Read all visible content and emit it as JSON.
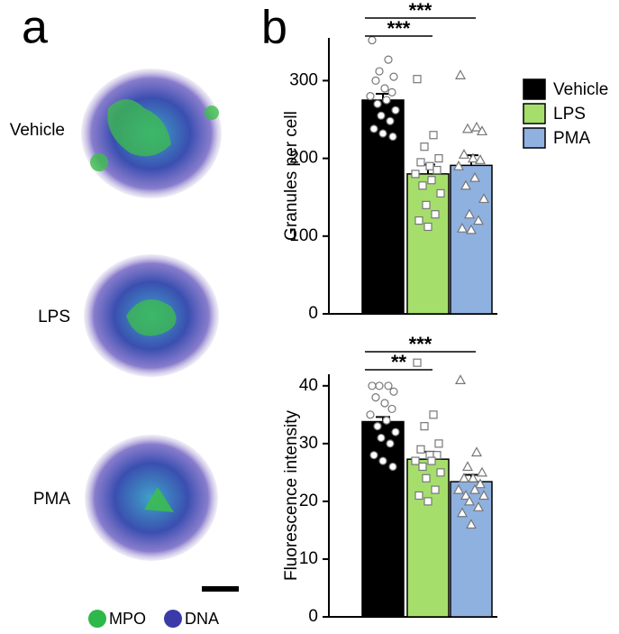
{
  "panel_a": {
    "label": "a",
    "rows": [
      "Vehicle",
      "LPS",
      "PMA"
    ],
    "legend": [
      "MPO",
      "DNA"
    ]
  },
  "chart_data": [
    {
      "type": "bar",
      "panel": "b",
      "ylabel": "Granules per cell",
      "categories": [
        "Vehicle",
        "LPS",
        "PMA"
      ],
      "colors": [
        "#000000",
        "#a6de6c",
        "#8fb1e0"
      ],
      "markers": [
        "circle",
        "square",
        "triangle"
      ],
      "values": [
        275,
        180,
        191
      ],
      "errors": [
        8,
        12,
        13
      ],
      "points": [
        [
          352,
          327,
          312,
          305,
          300,
          290,
          285,
          280,
          275,
          270,
          262,
          255,
          248,
          238,
          232,
          228
        ],
        [
          302,
          230,
          215,
          200,
          195,
          190,
          185,
          180,
          172,
          165,
          155,
          140,
          128,
          120,
          112
        ],
        [
          307,
          240,
          238,
          235,
          205,
          200,
          198,
          190,
          175,
          165,
          148,
          128,
          120,
          110,
          108
        ]
      ],
      "ylim": [
        0,
        355
      ],
      "yticks": [
        0,
        100,
        200,
        300
      ],
      "annotations": [
        {
          "text": "***",
          "from": 0,
          "to": 2
        },
        {
          "text": "***",
          "from": 0,
          "to": 1
        }
      ]
    },
    {
      "type": "bar",
      "ylabel": "Fluorescence intensity",
      "colors": [
        "#000000",
        "#a6de6c",
        "#8fb1e0"
      ],
      "markers": [
        "circle",
        "square",
        "triangle"
      ],
      "values": [
        33.8,
        27.3,
        23.4
      ],
      "errors": [
        0.8,
        1.3,
        1.2
      ],
      "points": [
        [
          40,
          40,
          40,
          39,
          38,
          37,
          36,
          35,
          34,
          33,
          32,
          31,
          30,
          28,
          27,
          26
        ],
        [
          44,
          35,
          33,
          30,
          29,
          28,
          28,
          27,
          27,
          26,
          25,
          24,
          22,
          21,
          20
        ],
        [
          41,
          28.5,
          26,
          25,
          24,
          24,
          23,
          22,
          22,
          21,
          21,
          20,
          19,
          18,
          16
        ]
      ],
      "ylim": [
        0,
        42
      ],
      "yticks": [
        0,
        10,
        20,
        30,
        40
      ],
      "annotations": [
        {
          "text": "***",
          "from": 0,
          "to": 2
        },
        {
          "text": "**",
          "from": 0,
          "to": 1
        }
      ]
    }
  ]
}
